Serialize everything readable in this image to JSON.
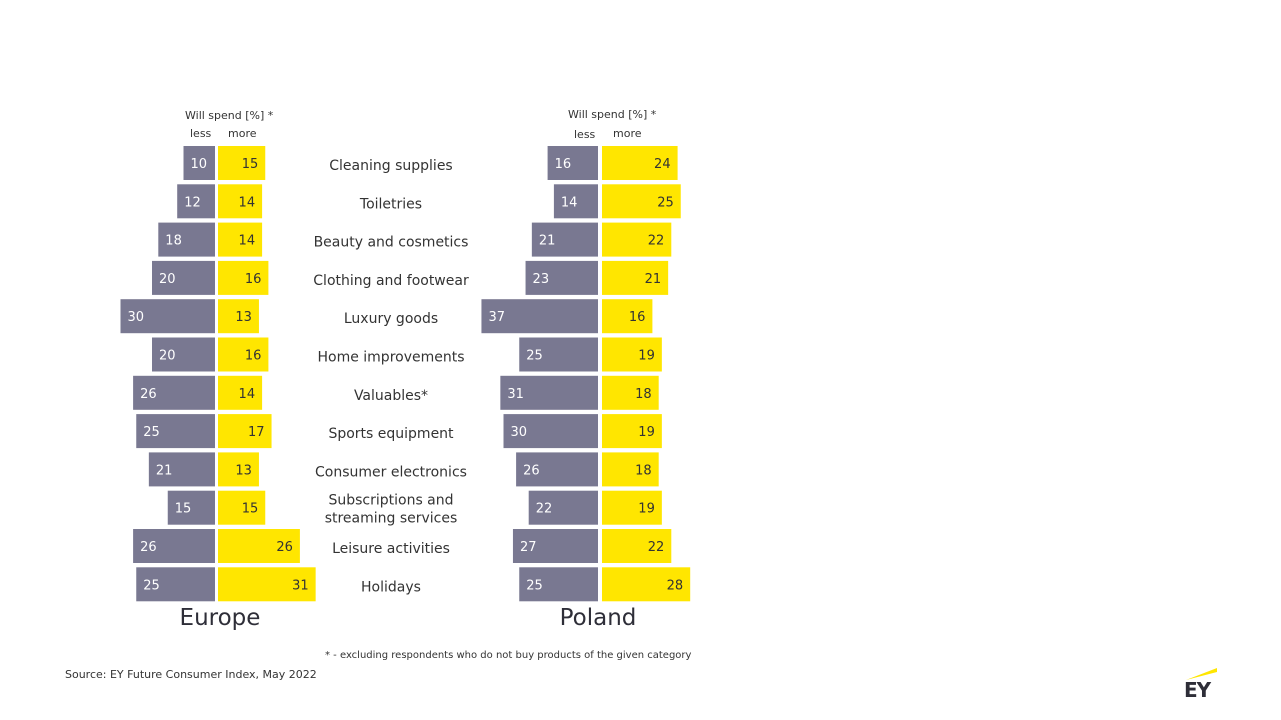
{
  "header": {
    "will_spend": "Will spend [%]",
    "asterisk": "*",
    "less": "less",
    "more": "more"
  },
  "footnote": "* - excluding respondents who do not buy products of the given category",
  "source": "Source: EY Future Consumer Index, May 2022",
  "logo": {
    "text": "EY",
    "icon": "ey-logo-icon",
    "beam_color": "#FFE600"
  },
  "colors": {
    "less": "#797891",
    "more": "#FFE600",
    "label": "#333333"
  },
  "chart_data": {
    "type": "bar",
    "orientation": "horizontal-diverging",
    "categories": [
      "Cleaning supplies",
      "Toiletries",
      "Beauty and cosmetics",
      "Clothing and footwear",
      "Luxury goods",
      "Home improvements",
      "Valuables*",
      "Sports equipment",
      "Consumer electronics",
      "Subscriptions and streaming services",
      "Leisure activities",
      "Holidays"
    ],
    "panels": [
      {
        "region": "Europe",
        "series": [
          {
            "name": "less",
            "values": [
              10,
              12,
              18,
              20,
              30,
              20,
              26,
              25,
              21,
              15,
              26,
              25
            ]
          },
          {
            "name": "more",
            "values": [
              15,
              14,
              14,
              16,
              13,
              16,
              14,
              17,
              13,
              15,
              26,
              31
            ]
          }
        ]
      },
      {
        "region": "Poland",
        "series": [
          {
            "name": "less",
            "values": [
              16,
              14,
              21,
              23,
              37,
              25,
              31,
              30,
              26,
              22,
              27,
              25
            ]
          },
          {
            "name": "more",
            "values": [
              24,
              25,
              22,
              21,
              16,
              19,
              18,
              19,
              18,
              19,
              22,
              28
            ]
          }
        ]
      }
    ]
  }
}
